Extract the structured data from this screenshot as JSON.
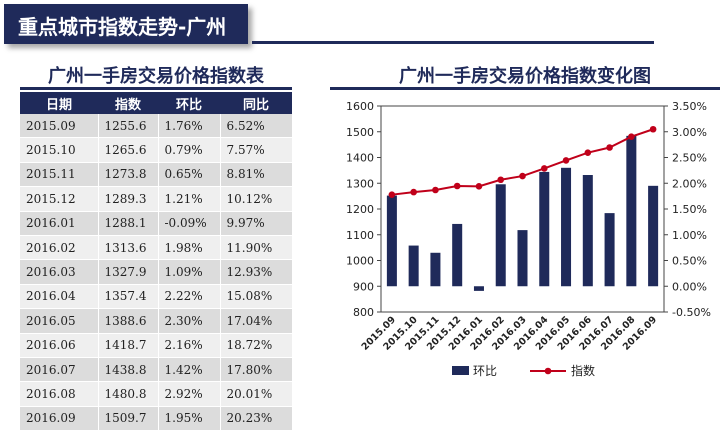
{
  "banner": {
    "title": "重点城市指数走势-广州"
  },
  "table": {
    "title": "广州一手房交易价格指数表",
    "headers": [
      "日期",
      "指数",
      "环比",
      "同比"
    ],
    "rows": [
      [
        "2015.09",
        "1255.6",
        "1.76%",
        "6.52%"
      ],
      [
        "2015.10",
        "1265.6",
        "0.79%",
        "7.57%"
      ],
      [
        "2015.11",
        "1273.8",
        "0.65%",
        "8.81%"
      ],
      [
        "2015.12",
        "1289.3",
        "1.21%",
        "10.12%"
      ],
      [
        "2016.01",
        "1288.1",
        "-0.09%",
        "9.97%"
      ],
      [
        "2016.02",
        "1313.6",
        "1.98%",
        "11.90%"
      ],
      [
        "2016.03",
        "1327.9",
        "1.09%",
        "12.93%"
      ],
      [
        "2016.04",
        "1357.4",
        "2.22%",
        "15.08%"
      ],
      [
        "2016.05",
        "1388.6",
        "2.30%",
        "17.04%"
      ],
      [
        "2016.06",
        "1418.7",
        "2.16%",
        "18.72%"
      ],
      [
        "2016.07",
        "1438.8",
        "1.42%",
        "17.80%"
      ],
      [
        "2016.08",
        "1480.8",
        "2.92%",
        "20.01%"
      ],
      [
        "2016.09",
        "1509.7",
        "1.95%",
        "20.23%"
      ]
    ]
  },
  "chart_title": "广州一手房交易价格指数变化图",
  "chart_data": {
    "type": "bar",
    "categories": [
      "2015.09",
      "2015.10",
      "2015.11",
      "2015.12",
      "2016.01",
      "2016.02",
      "2016.03",
      "2016.04",
      "2016.05",
      "2016.06",
      "2016.07",
      "2016.08",
      "2016.09"
    ],
    "series": [
      {
        "name": "环比",
        "type": "bar",
        "axis": "right",
        "color": "#1f2a5a",
        "values": [
          1.76,
          0.79,
          0.65,
          1.21,
          -0.09,
          1.98,
          1.09,
          2.22,
          2.3,
          2.16,
          1.42,
          2.92,
          1.95
        ]
      },
      {
        "name": "指数",
        "type": "line",
        "axis": "left",
        "color": "#c0001a",
        "values": [
          1255.6,
          1265.6,
          1273.8,
          1289.3,
          1288.1,
          1313.6,
          1327.9,
          1357.4,
          1388.6,
          1418.7,
          1438.8,
          1480.8,
          1509.7
        ]
      }
    ],
    "left_axis": {
      "min": 800,
      "max": 1600,
      "step": 100,
      "ticks": [
        "800",
        "900",
        "1000",
        "1100",
        "1200",
        "1300",
        "1400",
        "1500",
        "1600"
      ]
    },
    "right_axis": {
      "min": -0.5,
      "max": 3.5,
      "step": 0.5,
      "ticks": [
        "-0.50%",
        "0.00%",
        "0.50%",
        "1.00%",
        "1.50%",
        "2.00%",
        "2.50%",
        "3.00%",
        "3.50%"
      ]
    },
    "grid": false,
    "legend": "bottom"
  }
}
